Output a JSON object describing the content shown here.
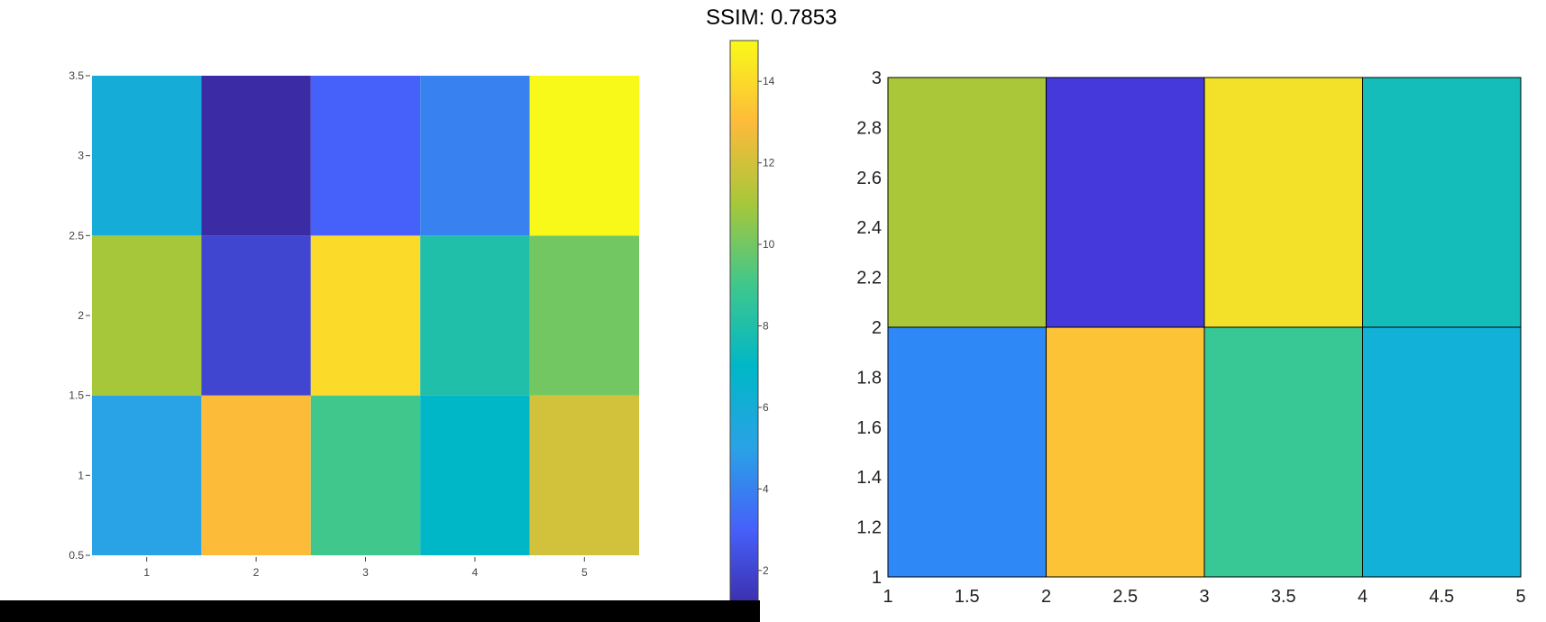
{
  "title": "SSIM: 0.7853",
  "chart_data": [
    {
      "type": "heatmap",
      "x": [
        1,
        2,
        3,
        4,
        5
      ],
      "y": [
        1,
        2,
        3
      ],
      "z": [
        [
          5,
          13,
          9,
          7,
          12
        ],
        [
          11,
          2,
          14,
          8,
          10
        ],
        [
          6,
          1,
          3,
          4,
          15
        ]
      ],
      "xlim": [
        0.5,
        5.5
      ],
      "ylim": [
        0.5,
        3.5
      ],
      "x_ticks": [
        "1",
        "2",
        "3",
        "4",
        "5"
      ],
      "y_ticks": [
        "0.5",
        "1",
        "1.5",
        "2",
        "2.5",
        "3",
        "3.5"
      ],
      "colorscale": [
        "#3b2ba5",
        "#4660fa",
        "#2aa2e6",
        "#00b7c7",
        "#3fc78c",
        "#a7c73a",
        "#fdbb3a",
        "#f9f919"
      ],
      "colorbar": {
        "range": [
          1,
          15
        ],
        "ticks": [
          "2",
          "4",
          "6",
          "8",
          "10",
          "12",
          "14"
        ]
      },
      "grid": false
    },
    {
      "type": "heatmap",
      "x_edges": [
        1,
        2,
        3,
        4,
        5
      ],
      "y_edges": [
        1,
        2,
        3
      ],
      "cell_colors": [
        [
          "#2e88f6",
          "#fdc337",
          "#37c896",
          "#12b1d8"
        ],
        [
          "#aac73a",
          "#4539dc",
          "#f3e028",
          "#14bdb9"
        ]
      ],
      "xlim": [
        1,
        5
      ],
      "ylim": [
        1,
        3
      ],
      "x_ticks": [
        "1",
        "1.5",
        "2",
        "2.5",
        "3",
        "3.5",
        "4",
        "4.5",
        "5"
      ],
      "y_ticks": [
        "1",
        "1.2",
        "1.4",
        "1.6",
        "1.8",
        "2",
        "2.2",
        "2.4",
        "2.6",
        "2.8",
        "3"
      ],
      "grid": false
    }
  ]
}
